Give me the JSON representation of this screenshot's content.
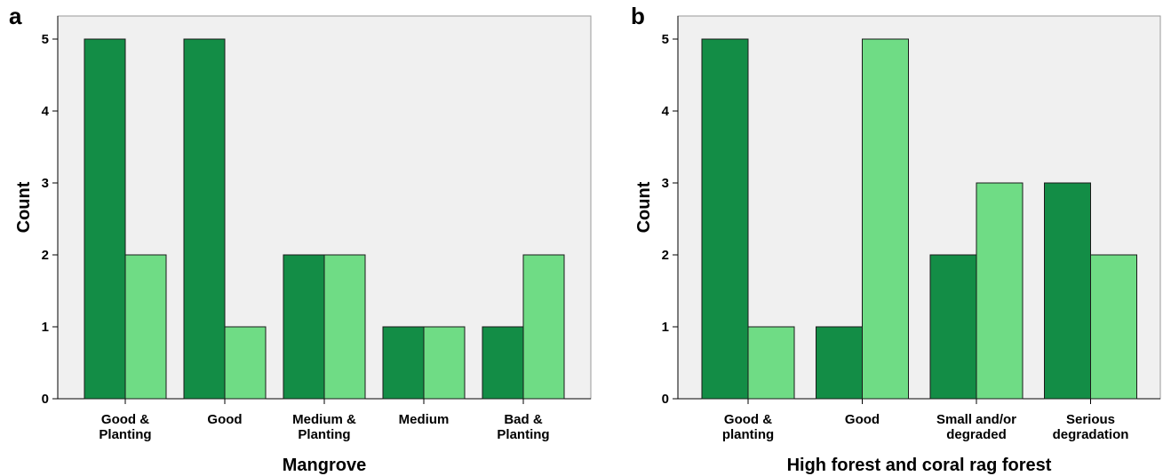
{
  "colors": {
    "dark_green": "#138d46",
    "light_green": "#6fdc85",
    "plot_bg": "#f0f0f0",
    "bar_stroke": "#1a1a1a"
  },
  "chart_data": [
    {
      "type": "bar",
      "panel_label": "a",
      "categories": [
        [
          "Good &",
          "Planting"
        ],
        [
          "Good"
        ],
        [
          "Medium &",
          "Planting"
        ],
        [
          "Medium"
        ],
        [
          "Bad &",
          "Planting"
        ]
      ],
      "series": [
        {
          "values": [
            5,
            5,
            2,
            1,
            1
          ]
        },
        {
          "values": [
            2,
            1,
            2,
            1,
            2
          ]
        }
      ],
      "xlabel": "Mangrove",
      "ylabel": "Count",
      "ylim": [
        0,
        5
      ],
      "yticks": [
        0,
        1,
        2,
        3,
        4,
        5
      ],
      "grid": false
    },
    {
      "type": "bar",
      "panel_label": "b",
      "categories": [
        [
          "Good &",
          "planting"
        ],
        [
          "Good"
        ],
        [
          "Small and/or",
          "degraded"
        ],
        [
          "Serious",
          "degradation"
        ]
      ],
      "series": [
        {
          "values": [
            5,
            1,
            2,
            3
          ]
        },
        {
          "values": [
            1,
            5,
            3,
            2
          ]
        }
      ],
      "xlabel": "High forest and coral rag forest",
      "ylabel": "Count",
      "ylim": [
        0,
        5
      ],
      "yticks": [
        0,
        1,
        2,
        3,
        4,
        5
      ],
      "grid": false
    }
  ]
}
